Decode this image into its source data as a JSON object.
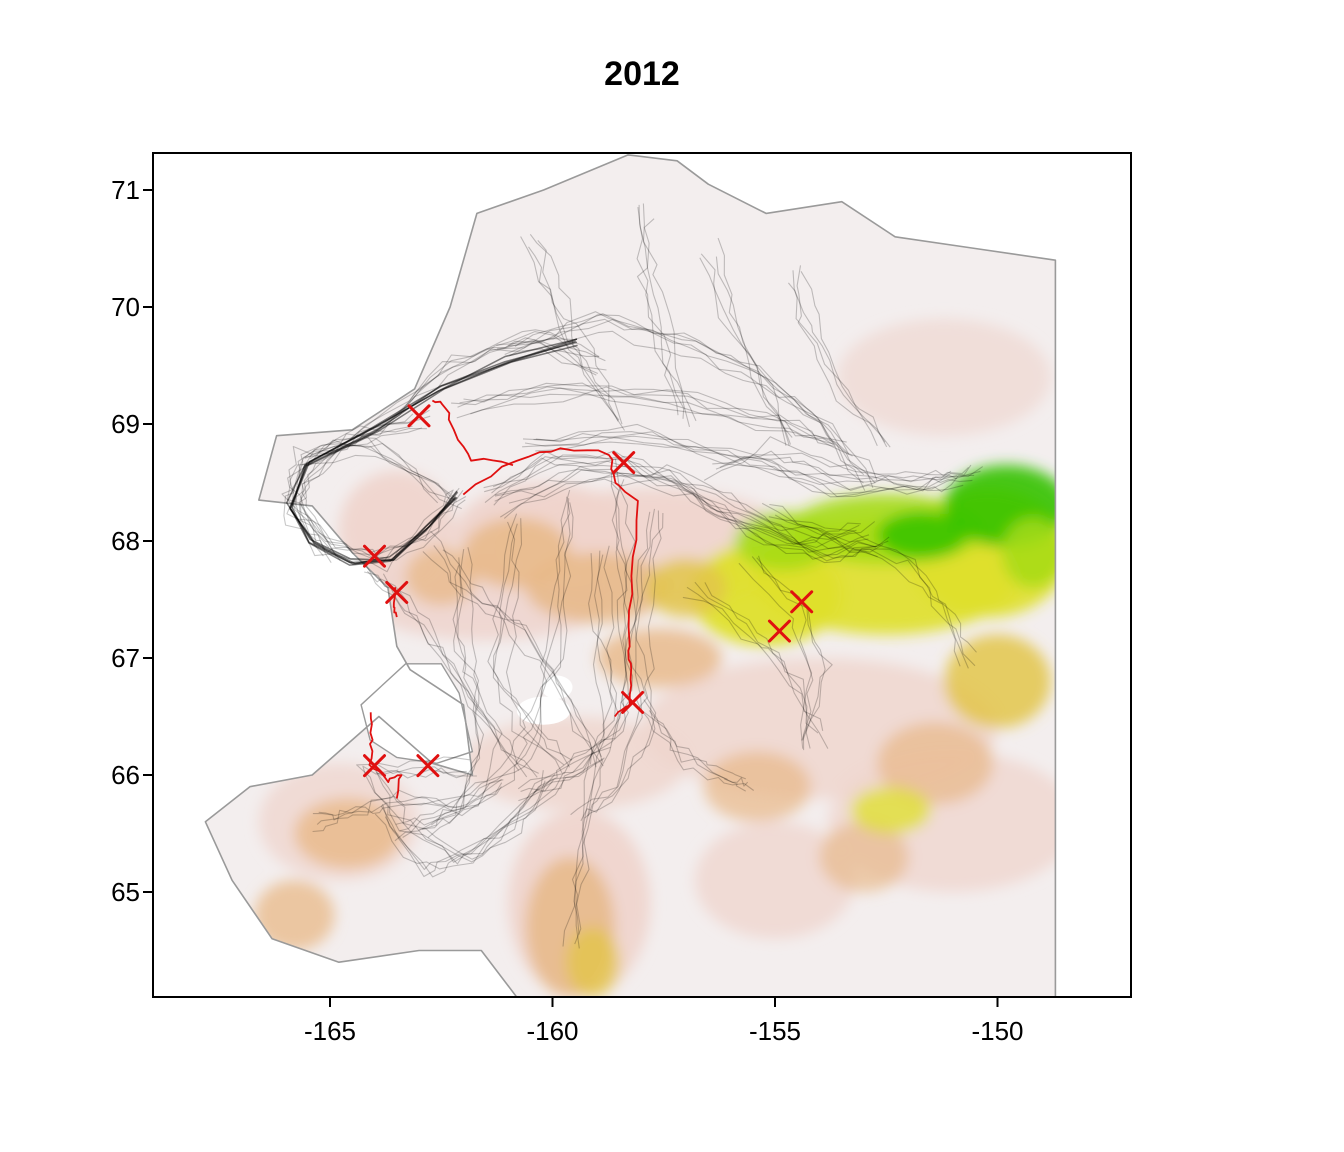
{
  "title": "2012",
  "map": {
    "x_ticks": [
      "-165",
      "-160",
      "-155",
      "-150"
    ],
    "y_ticks": [
      "65",
      "66",
      "67",
      "68",
      "69",
      "70",
      "71"
    ],
    "lon_range": [
      -169,
      -147
    ],
    "lat_range": [
      64.1,
      71.3
    ],
    "elevation_colors": [
      "#f3eeee",
      "#efd4cc",
      "#e8b887",
      "#e3c64a",
      "#dfe02a",
      "#a6dc17",
      "#33c200"
    ],
    "coast_color": "#9a9a9a",
    "track_color": "#000000",
    "highlight_track_color": "#e01010",
    "marker": {
      "symbol": "x",
      "color": "#e01010",
      "points": [
        {
          "lon": -163.0,
          "lat": 69.07
        },
        {
          "lon": -158.4,
          "lat": 68.67
        },
        {
          "lon": -164.0,
          "lat": 67.87
        },
        {
          "lon": -163.5,
          "lat": 67.56
        },
        {
          "lon": -154.4,
          "lat": 67.48
        },
        {
          "lon": -154.9,
          "lat": 67.23
        },
        {
          "lon": -158.2,
          "lat": 66.62
        },
        {
          "lon": -164.0,
          "lat": 66.08
        },
        {
          "lon": -162.8,
          "lat": 66.08
        }
      ]
    }
  }
}
